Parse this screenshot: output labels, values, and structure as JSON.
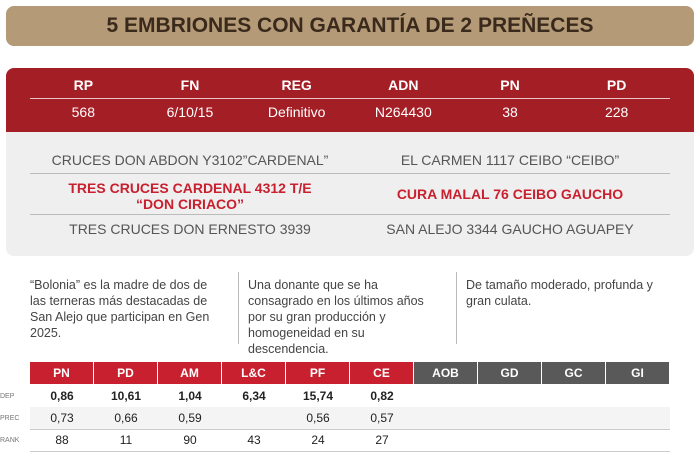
{
  "banner": {
    "title": "5 EMBRIONES CON GARANTÍA DE 2 PREÑECES"
  },
  "registry": {
    "headers": [
      "RP",
      "FN",
      "REG",
      "ADN",
      "PN",
      "PD"
    ],
    "values": [
      "568",
      "6/10/15",
      "Definitivo",
      "N264430",
      "38",
      "228"
    ]
  },
  "pedigree": {
    "rows": [
      {
        "left": [
          "CRUCES DON ABDON Y3102”CARDENAL”"
        ],
        "right": [
          "EL CARMEN 1117 CEIBO “CEIBO”"
        ]
      },
      {
        "left": [
          "TRES CRUCES CARDENAL 4312 T/E",
          "“DON CIRIACO”"
        ],
        "right": [
          "CURA MALAL 76 CEIBO GAUCHO"
        ]
      },
      {
        "left": [
          "TRES CRUCES DON ERNESTO 3939"
        ],
        "right": [
          "SAN ALEJO 3344 GAUCHO AGUAPEY"
        ]
      }
    ]
  },
  "notes": [
    "“Bolonia” es la madre de dos de las terneras más destacadas de San Alejo que participan en Gen 2025.",
    "Una donante que se ha consagrado en los últimos años por su gran producción y homogeneidad en su descendencia.",
    "De tamaño moderado, profunda y gran culata."
  ],
  "epd_table": {
    "headers": [
      "PN",
      "PD",
      "AM",
      "L&C",
      "PF",
      "CE",
      "AOB",
      "GD",
      "GC",
      "GI"
    ],
    "rows": [
      {
        "label": "DEP",
        "cells": [
          "0,86",
          "10,61",
          "1,04",
          "6,34",
          "15,74",
          "0,82"
        ]
      },
      {
        "label": "PREC",
        "cells": [
          "0,73",
          "0,66",
          "0,59",
          null,
          "0,56",
          "0,57"
        ]
      },
      {
        "label": "RANK",
        "cells": [
          "88",
          "11",
          "90",
          "43",
          "24",
          "27"
        ]
      }
    ]
  }
}
